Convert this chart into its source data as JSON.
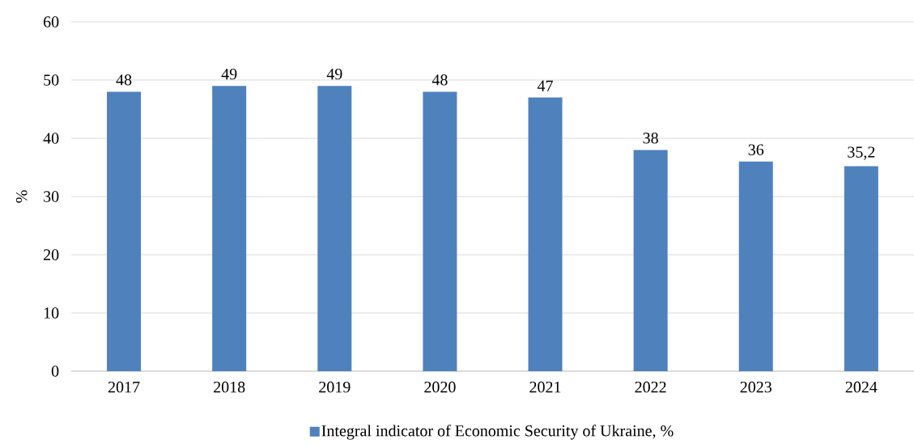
{
  "chart_data": {
    "type": "bar",
    "ylabel": "%",
    "categories": [
      "2017",
      "2018",
      "2019",
      "2020",
      "2021",
      "2022",
      "2023",
      "2024"
    ],
    "series": [
      {
        "name": "Integral indicator of Economic Security of Ukraine, %",
        "color": "#4f81bd",
        "values": [
          48,
          49,
          49,
          48,
          47,
          38,
          36,
          35.2
        ],
        "value_labels": [
          "48",
          "49",
          "49",
          "48",
          "47",
          "38",
          "36",
          "35,2"
        ]
      }
    ],
    "ylim": [
      0,
      60
    ],
    "yticks": [
      0,
      10,
      20,
      30,
      40,
      50,
      60
    ],
    "grid": "y",
    "legend": "bottom"
  }
}
